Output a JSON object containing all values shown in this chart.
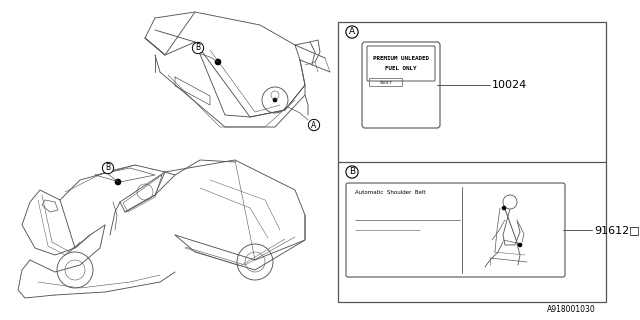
{
  "bg_color": "#ffffff",
  "border_color": "#555555",
  "line_color": "#555555",
  "fig_width": 6.4,
  "fig_height": 3.2,
  "dpi": 100,
  "footer_text": "A918001030",
  "panel_A_label": "A",
  "panel_B_label": "B",
  "part_A_number": "10024",
  "part_B_number": "91612□",
  "label_A_line1": "PREMIUM UNLEADED",
  "label_A_line2": "FUEL ONLY",
  "label_A_subtext": "91OCT",
  "label_B_title": "Automatic  Shoulder  Belt",
  "car_label_A": "A",
  "car_label_B": "B",
  "lw": 0.6
}
